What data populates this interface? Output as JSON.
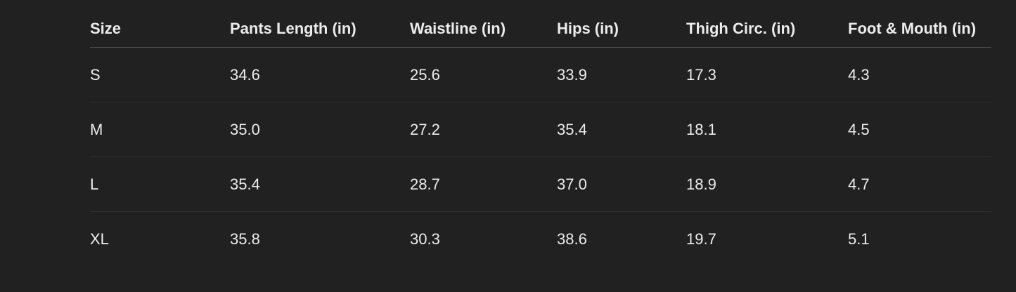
{
  "table": {
    "headers": [
      "Size",
      "Pants Length (in)",
      "Waistline (in)",
      "Hips (in)",
      "Thigh Circ. (in)",
      "Foot & Mouth (in)"
    ],
    "rows": [
      [
        "S",
        "34.6",
        "25.6",
        "33.9",
        "17.3",
        "4.3"
      ],
      [
        "M",
        "35.0",
        "27.2",
        "35.4",
        "18.1",
        "4.5"
      ],
      [
        "L",
        "35.4",
        "28.7",
        "37.0",
        "18.9",
        "4.7"
      ],
      [
        "XL",
        "35.8",
        "30.3",
        "38.6",
        "19.7",
        "5.1"
      ]
    ]
  }
}
